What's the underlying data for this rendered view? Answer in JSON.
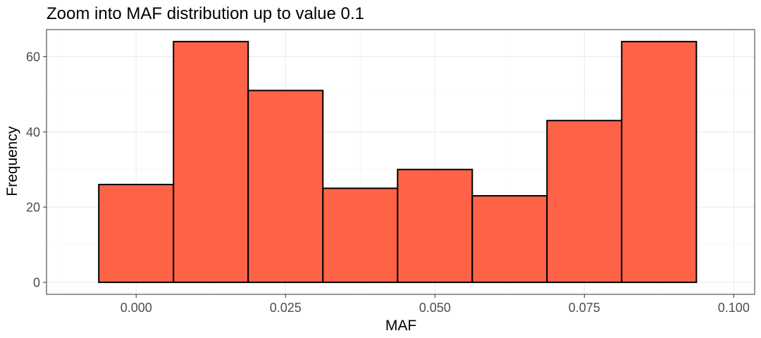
{
  "chart_data": {
    "type": "bar",
    "title": "Zoom into MAF distribution up to value 0.1",
    "xlabel": "MAF",
    "ylabel": "Frequency",
    "bins": [
      {
        "x_start": -0.00625,
        "x_end": 0.00625,
        "count": 26
      },
      {
        "x_start": 0.00625,
        "x_end": 0.01875,
        "count": 64
      },
      {
        "x_start": 0.01875,
        "x_end": 0.03125,
        "count": 51
      },
      {
        "x_start": 0.03125,
        "x_end": 0.04375,
        "count": 25
      },
      {
        "x_start": 0.04375,
        "x_end": 0.05625,
        "count": 30
      },
      {
        "x_start": 0.05625,
        "x_end": 0.06875,
        "count": 23
      },
      {
        "x_start": 0.06875,
        "x_end": 0.08125,
        "count": 43
      },
      {
        "x_start": 0.08125,
        "x_end": 0.09375,
        "count": 64
      }
    ],
    "xlim": [
      -0.015,
      0.1035
    ],
    "ylim": [
      -3.2,
      67.2
    ],
    "x_ticks": [
      {
        "value": 0.0,
        "label": "0.000"
      },
      {
        "value": 0.025,
        "label": "0.025"
      },
      {
        "value": 0.05,
        "label": "0.050"
      },
      {
        "value": 0.075,
        "label": "0.075"
      },
      {
        "value": 0.1,
        "label": "0.100"
      }
    ],
    "y_ticks": [
      {
        "value": 0,
        "label": "0"
      },
      {
        "value": 20,
        "label": "20"
      },
      {
        "value": 40,
        "label": "40"
      },
      {
        "value": 60,
        "label": "60"
      }
    ],
    "bar_fill": "#ff6347",
    "bar_outline": "#000000",
    "grid": true,
    "legend": "none"
  }
}
